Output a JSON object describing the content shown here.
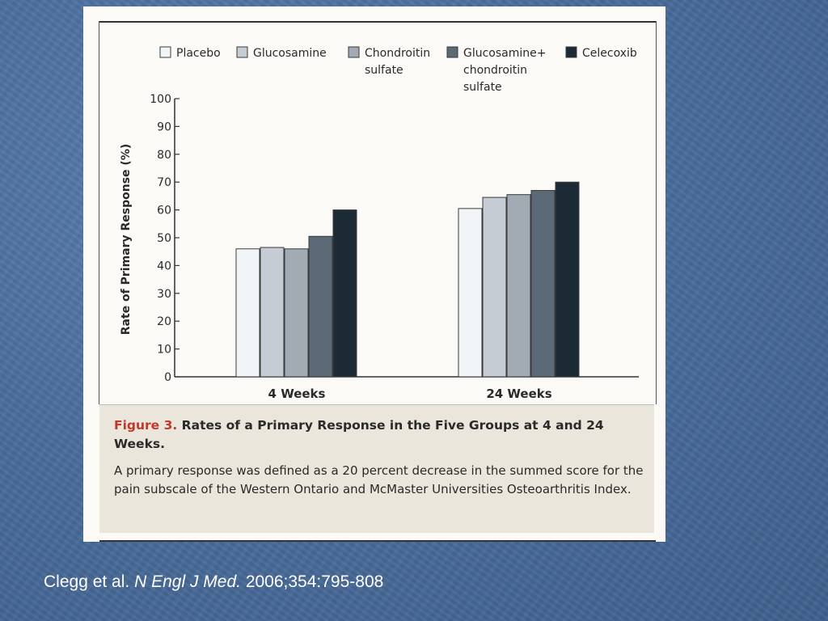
{
  "chart_data": {
    "type": "bar",
    "categories": [
      "4 Weeks",
      "24 Weeks"
    ],
    "series": [
      {
        "name": "Placebo",
        "values": [
          46,
          60.5
        ],
        "color": "#f2f5f8"
      },
      {
        "name": "Glucosamine",
        "values": [
          46.5,
          64.5
        ],
        "color": "#c6ccd3"
      },
      {
        "name": "Chondroitin sulfate",
        "values": [
          46,
          65.5
        ],
        "color": "#a2abb3"
      },
      {
        "name": "Glucosamine+ chondroitin sulfate",
        "values": [
          50.5,
          67
        ],
        "color": "#5b6a76"
      },
      {
        "name": "Celecoxib",
        "values": [
          60,
          70
        ],
        "color": "#1c2a35"
      }
    ],
    "legend_lines": [
      [
        "Placebo"
      ],
      [
        "Glucosamine"
      ],
      [
        "Chondroitin",
        "sulfate"
      ],
      [
        "Glucosamine+",
        "chondroitin",
        "sulfate"
      ],
      [
        "Celecoxib"
      ]
    ],
    "ylabel": "Rate of Primary Response (%)",
    "xlabel": "",
    "ylim": [
      0,
      100
    ],
    "yticks": [
      0,
      10,
      20,
      30,
      40,
      50,
      60,
      70,
      80,
      90,
      100
    ],
    "grid": false,
    "legend_position": "top"
  },
  "caption": {
    "label": "Figure 3.",
    "title": "Rates of a Primary Response in the Five Groups at 4 and 24 Weeks.",
    "text": "A primary response was defined as a 20 percent decrease in the summed score for the pain subscale of the Western Ontario and McMaster Universities Osteoarthritis Index."
  },
  "citation": {
    "authors": "Clegg et al.",
    "journal": "N Engl J Med.",
    "details": "2006;354:795-808"
  }
}
